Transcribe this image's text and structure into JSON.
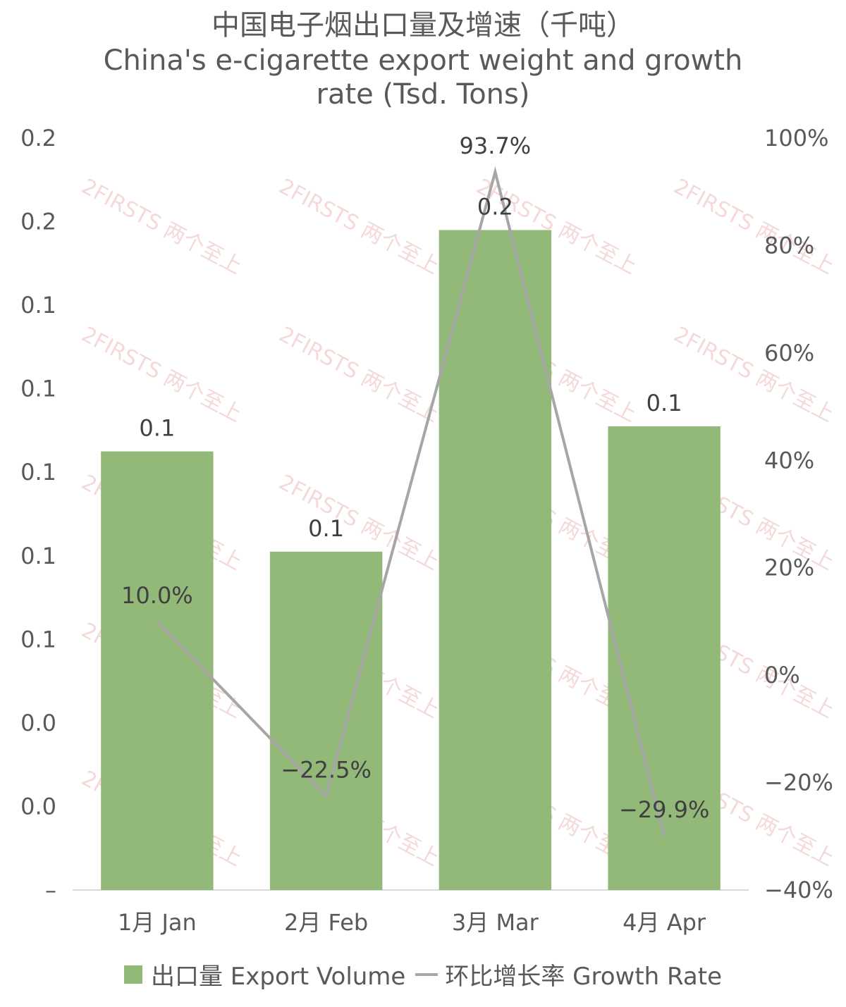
{
  "title_line1": "中国电子烟出口量及增速（千吨）",
  "title_line2": "China's e-cigarette export weight and growth",
  "title_line3": "rate (Tsd. Tons)",
  "watermark_text": "2FIRSTS 两个至上",
  "colors": {
    "bar": "#93b978",
    "line": "#a6a6a6",
    "axis": "#d9d9d9"
  },
  "chart_data": {
    "type": "bar",
    "categories": [
      "1月 Jan",
      "2月 Feb",
      "3月 Mar",
      "4月 Apr"
    ],
    "series": [
      {
        "name": "出口量 Export Volume",
        "type": "bar",
        "axis": "left",
        "values": [
          0.105,
          0.081,
          0.158,
          0.111
        ],
        "data_labels": [
          "0.1",
          "0.1",
          "0.2",
          "0.1"
        ]
      },
      {
        "name": "环比增长率 Growth Rate",
        "type": "line",
        "axis": "right",
        "values": [
          10.0,
          -22.5,
          93.7,
          -29.9
        ],
        "data_labels": [
          "10.0%",
          "-22.5%",
          "93.7%",
          "-29.9%"
        ]
      }
    ],
    "y_left": {
      "ylim": [
        0,
        0.18
      ],
      "tick_labels": [
        "–",
        "0.0",
        "0.0",
        "0.1",
        "0.1",
        "0.1",
        "0.1",
        "0.1",
        "0.2",
        "0.2"
      ]
    },
    "y_right": {
      "ylim": [
        -40,
        100
      ],
      "tick_labels": [
        "-40%",
        "-20%",
        "0%",
        "20%",
        "40%",
        "60%",
        "80%",
        "100%"
      ]
    },
    "legend_position": "bottom",
    "grid": false
  }
}
